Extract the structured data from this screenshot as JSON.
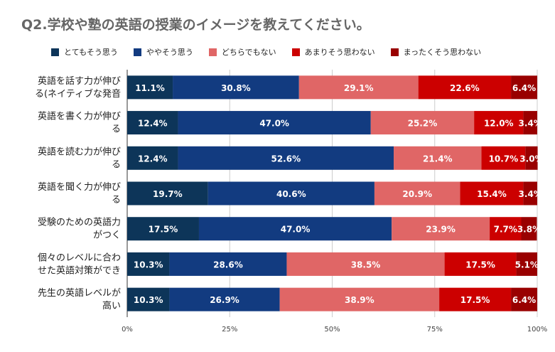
{
  "chart_data": {
    "type": "bar",
    "orientation": "horizontal",
    "stacked": true,
    "title": "Q2.学校や塾の英語の授業のイメージを教えてください。",
    "categories": [
      [
        "英語を話す力が伸び",
        "る(ネイティブな発音"
      ],
      [
        "英語を書く力が伸び",
        "る"
      ],
      [
        "英語を読む力が伸び",
        "る"
      ],
      [
        "英語を聞く力が伸び",
        "る"
      ],
      [
        "受験のための英語力",
        "がつく"
      ],
      [
        "個々のレベルに合わ",
        "せた英語対策ができ"
      ],
      [
        "先生の英語レベルが",
        "高い"
      ]
    ],
    "series": [
      {
        "name": "とてもそう思う",
        "color": "#0d3559",
        "values": [
          11.1,
          12.4,
          12.4,
          19.7,
          17.5,
          10.3,
          10.3
        ],
        "labels": [
          "11.1%",
          "12.4%",
          "12.4%",
          "19.7%",
          "17.5%",
          "10.3%",
          "10.3%"
        ]
      },
      {
        "name": "ややそう思う",
        "color": "#123b80",
        "values": [
          30.8,
          47.0,
          52.6,
          40.6,
          47.0,
          28.6,
          26.9
        ],
        "labels": [
          "30.8%",
          "47.0%",
          "52.6%",
          "40.6%",
          "47.0%",
          "28.6%",
          "26.9%"
        ]
      },
      {
        "name": "どちらでもない",
        "color": "#e06666",
        "values": [
          29.1,
          25.2,
          21.4,
          20.9,
          23.9,
          38.5,
          38.9
        ],
        "labels": [
          "29.1%",
          "25.2%",
          "21.4%",
          "20.9%",
          "23.9%",
          "38.5%",
          "38.9%"
        ]
      },
      {
        "name": "あまりそう思わない",
        "color": "#cc0000",
        "values": [
          22.6,
          12.0,
          10.7,
          15.4,
          7.7,
          17.5,
          17.5
        ],
        "labels": [
          "22.6%",
          "12.0%",
          "10.7%",
          "15.4%",
          "7.7%",
          "17.5%",
          "17.5%"
        ]
      },
      {
        "name": "まったくそう思わない",
        "color": "#990000",
        "values": [
          6.4,
          3.4,
          3.0,
          3.4,
          3.8,
          5.1,
          6.4
        ],
        "labels": [
          "6.4%",
          "3.4%",
          "3.0%",
          "3.4%",
          "3.8%",
          "5.1%",
          "6.4%"
        ]
      }
    ],
    "xlim": [
      0,
      100
    ],
    "xticks": [
      0,
      25,
      50,
      75,
      100
    ],
    "xtick_labels": [
      "0%",
      "25%",
      "50%",
      "75%",
      "100%"
    ],
    "grid": true,
    "legend_position": "top"
  }
}
